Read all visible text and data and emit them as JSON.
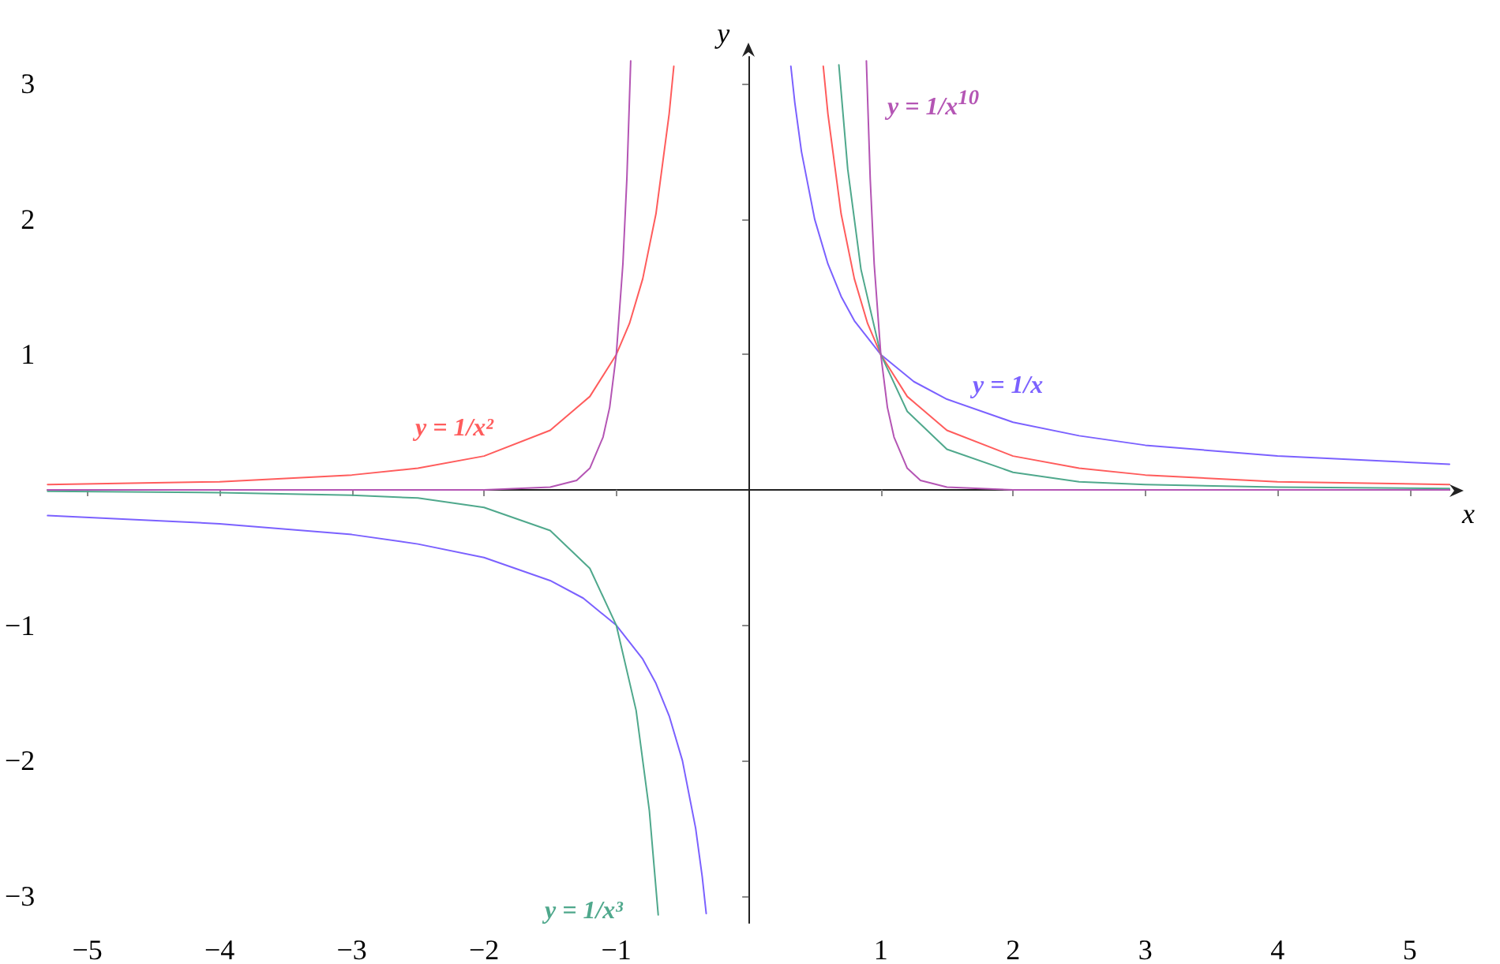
{
  "chart_data": {
    "type": "line",
    "xlabel": "x",
    "ylabel": "y",
    "xlim": [
      -5.3,
      5.3
    ],
    "ylim": [
      -3.2,
      3.2
    ],
    "xticks": [
      -5,
      -4,
      -3,
      -2,
      -1,
      1,
      2,
      3,
      4,
      5
    ],
    "yticks": [
      -3,
      -2,
      -1,
      1,
      2,
      3
    ],
    "grid": false,
    "marker": "none",
    "line_style": "solid",
    "series": [
      {
        "color": "#7b61ff",
        "x": [
          -5.3,
          -4,
          -3,
          -2.5,
          -2,
          -1.5,
          -1.25,
          -1,
          -0.8,
          -0.7,
          -0.6,
          -0.5,
          -0.4,
          -0.35,
          -0.32,
          0,
          0.32,
          0.35,
          0.4,
          0.5,
          0.6,
          0.7,
          0.8,
          1,
          1.25,
          1.5,
          2,
          2.5,
          3,
          4,
          5.3
        ],
        "values": [
          -0.19,
          -0.25,
          -0.33,
          -0.4,
          -0.5,
          -0.67,
          -0.8,
          -1,
          -1.25,
          -1.43,
          -1.67,
          -2,
          -2.5,
          -2.86,
          -3.13,
          null,
          3.13,
          2.86,
          2.5,
          2,
          1.67,
          1.43,
          1.25,
          1,
          0.8,
          0.67,
          0.5,
          0.4,
          0.33,
          0.25,
          0.19
        ]
      },
      {
        "color": "#ff5c5c",
        "x": [
          -5.3,
          -4,
          -3,
          -2.5,
          -2,
          -1.5,
          -1.2,
          -1,
          -0.9,
          -0.8,
          -0.7,
          -0.6,
          -0.565,
          0,
          0.565,
          0.6,
          0.7,
          0.8,
          0.9,
          1,
          1.2,
          1.5,
          2,
          2.5,
          3,
          4,
          5.3
        ],
        "values": [
          0.04,
          0.06,
          0.11,
          0.16,
          0.25,
          0.44,
          0.69,
          1,
          1.23,
          1.56,
          2.04,
          2.78,
          3.13,
          null,
          3.13,
          2.78,
          2.04,
          1.56,
          1.23,
          1,
          0.69,
          0.44,
          0.25,
          0.16,
          0.11,
          0.06,
          0.04
        ]
      },
      {
        "color": "#4fa88c",
        "x": [
          -5.3,
          -4,
          -3,
          -2.5,
          -2,
          -1.5,
          -1.2,
          -1,
          -0.85,
          -0.75,
          -0.683,
          0,
          0.683,
          0.75,
          0.85,
          1,
          1.2,
          1.5,
          2,
          2.5,
          3,
          4,
          5.3
        ],
        "values": [
          -0.01,
          -0.02,
          -0.04,
          -0.06,
          -0.13,
          -0.3,
          -0.58,
          -1,
          -1.63,
          -2.37,
          -3.14,
          null,
          3.14,
          2.37,
          1.63,
          1,
          0.58,
          0.3,
          0.13,
          0.06,
          0.04,
          0.02,
          0.01
        ]
      },
      {
        "color": "#b455b4",
        "x": [
          -5.3,
          -2,
          -1.5,
          -1.3,
          -1.2,
          -1.1,
          -1.05,
          -1,
          -0.95,
          -0.92,
          -0.891,
          0,
          0.891,
          0.92,
          0.95,
          1,
          1.05,
          1.1,
          1.2,
          1.3,
          1.5,
          2,
          5.3
        ],
        "values": [
          0,
          0,
          0.02,
          0.07,
          0.16,
          0.39,
          0.61,
          1,
          1.67,
          2.3,
          3.17,
          null,
          3.17,
          2.3,
          1.67,
          1,
          0.61,
          0.39,
          0.16,
          0.07,
          0.02,
          0,
          0
        ]
      }
    ],
    "annotations": [
      "y = 1/x",
      "y = 1/x²",
      "y = 1/x³",
      "y = 1/x$^{10}$"
    ]
  }
}
